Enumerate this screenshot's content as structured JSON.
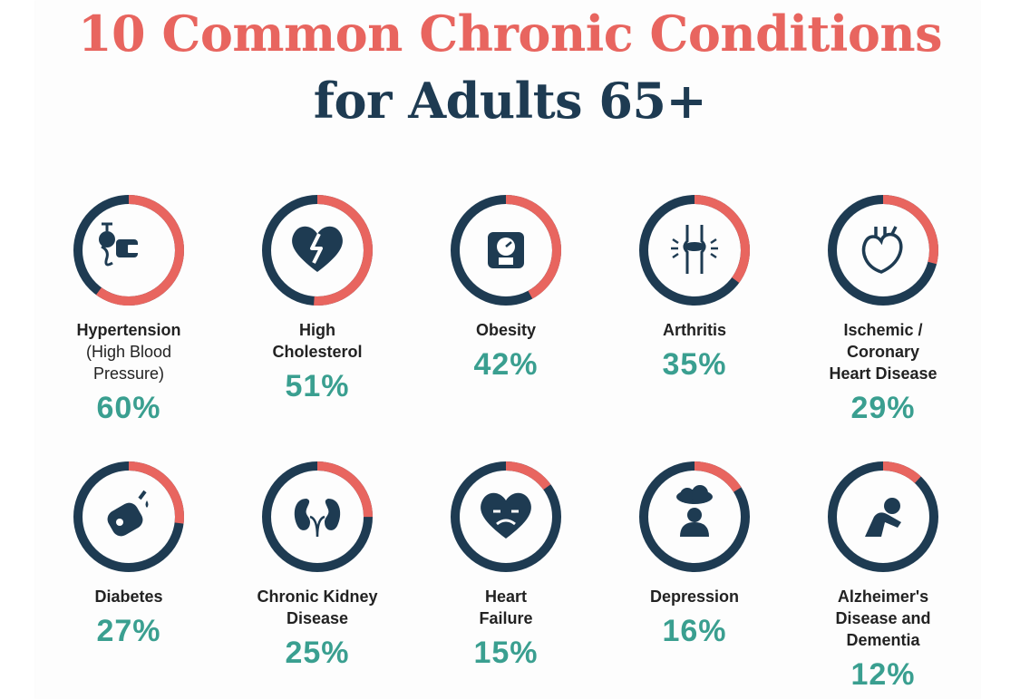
{
  "title": {
    "line1": "10 Common Chronic Conditions",
    "line2": "for Adults 65+"
  },
  "colors": {
    "title_accent": "#e8655f",
    "title_dark": "#1e3b52",
    "ring_dark": "#1e3b52",
    "ring_fill": "#e8655f",
    "value_teal": "#3a9f90"
  },
  "chart_data": {
    "type": "pie",
    "title": "10 Common Chronic Conditions for Adults 65+",
    "unit": "%",
    "categories": [
      "Hypertension (High Blood Pressure)",
      "High Cholesterol",
      "Obesity",
      "Arthritis",
      "Ischemic / Coronary Heart Disease",
      "Diabetes",
      "Chronic Kidney Disease",
      "Heart Failure",
      "Depression",
      "Alzheimer's Disease and Dementia"
    ],
    "values": [
      60,
      51,
      42,
      35,
      29,
      27,
      25,
      15,
      16,
      12
    ],
    "items": [
      {
        "label_lines": [
          "Hypertension"
        ],
        "sub_lines": [
          "(High Blood",
          "Pressure)"
        ],
        "value": 60,
        "value_text": "60%",
        "icon": "blood-pressure-monitor-icon"
      },
      {
        "label_lines": [
          "High",
          "Cholesterol"
        ],
        "sub_lines": [],
        "value": 51,
        "value_text": "51%",
        "icon": "broken-heart-icon"
      },
      {
        "label_lines": [
          "Obesity"
        ],
        "sub_lines": [],
        "value": 42,
        "value_text": "42%",
        "icon": "weight-scale-icon"
      },
      {
        "label_lines": [
          "Arthritis"
        ],
        "sub_lines": [],
        "value": 35,
        "value_text": "35%",
        "icon": "knee-joint-icon"
      },
      {
        "label_lines": [
          "Ischemic /",
          "Coronary",
          "Heart Disease"
        ],
        "sub_lines": [],
        "value": 29,
        "value_text": "29%",
        "icon": "anatomical-heart-icon"
      },
      {
        "label_lines": [
          "Diabetes"
        ],
        "sub_lines": [],
        "value": 27,
        "value_text": "27%",
        "icon": "glucose-meter-icon"
      },
      {
        "label_lines": [
          "Chronic Kidney",
          "Disease"
        ],
        "sub_lines": [],
        "value": 25,
        "value_text": "25%",
        "icon": "kidneys-icon"
      },
      {
        "label_lines": [
          "Heart",
          "Failure"
        ],
        "sub_lines": [],
        "value": 15,
        "value_text": "15%",
        "icon": "sad-heart-icon"
      },
      {
        "label_lines": [
          "Depression"
        ],
        "sub_lines": [],
        "value": 16,
        "value_text": "16%",
        "icon": "person-under-cloud-icon"
      },
      {
        "label_lines": [
          "Alzheimer's",
          "Disease and",
          "Dementia"
        ],
        "sub_lines": [],
        "value": 12,
        "value_text": "12%",
        "icon": "head-in-hands-icon"
      }
    ]
  }
}
